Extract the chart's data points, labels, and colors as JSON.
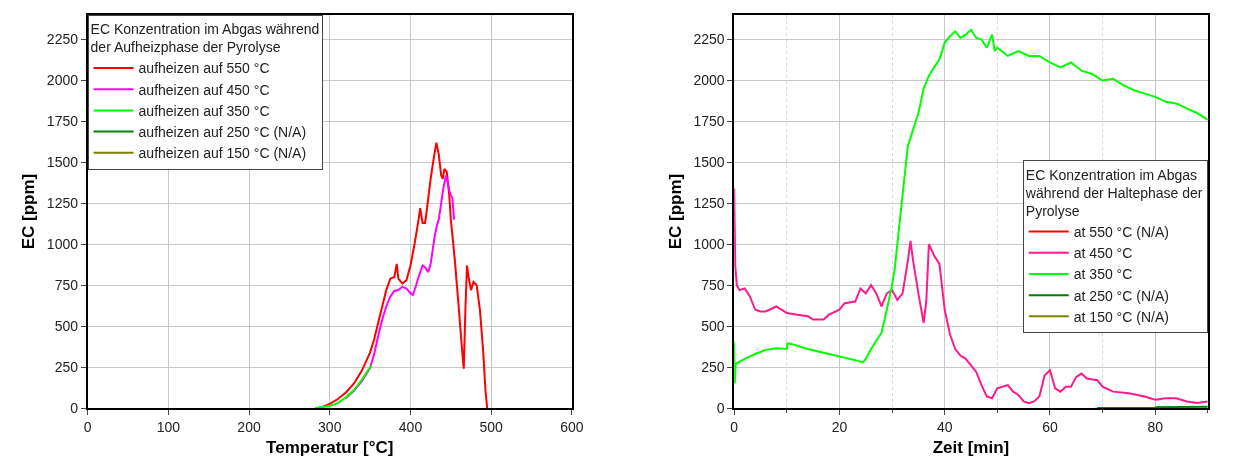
{
  "chart_data": [
    {
      "type": "line",
      "xlabel": "Temperatur [°C]",
      "ylabel": "EC [ppm]",
      "xlim": [
        0,
        600
      ],
      "ylim": [
        0,
        2400
      ],
      "xticks": [
        0,
        100,
        200,
        300,
        400,
        500,
        600
      ],
      "yticks": [
        0,
        250,
        500,
        750,
        1000,
        1250,
        1500,
        1750,
        2000,
        2250
      ],
      "grid": true,
      "legend": "top left",
      "legend_title": "EC Konzentration im Abgas während\nder Aufheizphase der Pyrolyse",
      "series": [
        {
          "name": "aufheizen auf 550 °C",
          "color": "#ff0000",
          "x": [
            285,
            290,
            300,
            310,
            320,
            330,
            340,
            350,
            355,
            360,
            365,
            370,
            375,
            380,
            383,
            385,
            390,
            395,
            400,
            405,
            410,
            412,
            415,
            418,
            420,
            425,
            428,
            432,
            435,
            438,
            440,
            442,
            445,
            448,
            450,
            455,
            460,
            464,
            466,
            468,
            470,
            472,
            475,
            478,
            482,
            486,
            490,
            493,
            495
          ],
          "values": [
            0,
            5,
            25,
            55,
            95,
            150,
            230,
            340,
            420,
            520,
            620,
            720,
            790,
            800,
            880,
            790,
            760,
            780,
            870,
            1000,
            1150,
            1220,
            1130,
            1130,
            1200,
            1400,
            1500,
            1620,
            1550,
            1420,
            1400,
            1460,
            1440,
            1300,
            1150,
            900,
            600,
            350,
            240,
            600,
            870,
            800,
            720,
            770,
            750,
            600,
            350,
            100,
            0
          ]
        },
        {
          "name": "aufheizen auf 450 °C",
          "color": "#ff00ff",
          "x": [
            320,
            330,
            340,
            350,
            355,
            360,
            365,
            370,
            375,
            380,
            385,
            390,
            395,
            400,
            403,
            407,
            410,
            415,
            418,
            422,
            425,
            430,
            433,
            435,
            438,
            441,
            444,
            446,
            448,
            450,
            452,
            454
          ],
          "values": [
            60,
            105,
            165,
            245,
            330,
            440,
            540,
            620,
            680,
            715,
            720,
            740,
            730,
            700,
            690,
            750,
            800,
            870,
            860,
            830,
            880,
            1050,
            1120,
            1150,
            1250,
            1350,
            1420,
            1380,
            1330,
            1300,
            1280,
            1150
          ]
        },
        {
          "name": "aufheizen auf 350 °C",
          "color": "#00ff00",
          "x": [
            282,
            300,
            310,
            320,
            330,
            340,
            350,
            352
          ],
          "values": [
            0,
            12,
            30,
            65,
            110,
            175,
            250,
            260
          ]
        },
        {
          "name": "aufheizen auf 250 °C (N/A)",
          "color": "#008000"
        },
        {
          "name": "aufheizen auf 150 °C (N/A)",
          "color": "#808000"
        }
      ]
    },
    {
      "type": "line",
      "xlabel": "Zeit [min]",
      "ylabel": "EC [ppm]",
      "xlim": [
        0,
        90
      ],
      "ylim": [
        0,
        2400
      ],
      "xticks": [
        0,
        20,
        40,
        60,
        80
      ],
      "yticks": [
        0,
        250,
        500,
        750,
        1000,
        1250,
        1500,
        1750,
        2000,
        2250
      ],
      "grid": true,
      "legend": "right",
      "legend_title": "EC Konzentration im Abgas\nwährend der Haltephase der\nPyrolyse",
      "series": [
        {
          "name": "at 550 °C (N/A)",
          "color": "#ff0000",
          "x": [
            69,
            80
          ],
          "values": [
            0,
            0
          ]
        },
        {
          "name": "at 450 °C",
          "color": "#ff1a8c",
          "x": [
            0,
            0.2,
            0.5,
            1,
            2,
            3,
            4,
            5,
            6,
            8,
            10,
            12,
            14,
            15,
            17,
            18,
            20,
            21,
            23,
            24,
            25,
            26,
            27,
            28,
            29,
            30,
            31,
            32,
            33,
            33.5,
            34,
            35,
            36,
            36.5,
            37,
            38,
            39,
            40,
            41,
            42,
            43,
            44,
            45,
            46,
            47,
            48,
            49,
            50,
            52,
            53,
            54,
            55,
            56,
            57,
            58,
            59,
            60,
            61,
            62,
            63,
            64,
            65,
            66,
            67,
            69,
            70,
            72,
            75,
            78,
            80,
            82,
            84,
            86,
            88,
            90
          ],
          "values": [
            1340,
            870,
            750,
            720,
            730,
            680,
            600,
            590,
            590,
            620,
            580,
            570,
            560,
            540,
            540,
            570,
            600,
            640,
            650,
            730,
            700,
            750,
            700,
            620,
            700,
            720,
            660,
            700,
            900,
            1020,
            900,
            700,
            520,
            650,
            1000,
            930,
            880,
            600,
            450,
            360,
            320,
            300,
            260,
            220,
            140,
            70,
            60,
            120,
            140,
            100,
            80,
            40,
            30,
            40,
            70,
            200,
            230,
            120,
            100,
            130,
            130,
            190,
            210,
            180,
            170,
            130,
            100,
            90,
            70,
            50,
            60,
            60,
            40,
            30,
            40
          ]
        },
        {
          "name": "at 350 °C",
          "color": "#00ff00",
          "x": [
            0,
            0.1,
            0.3,
            2,
            4,
            6,
            8,
            10,
            10.1,
            11,
            14,
            18,
            22,
            24.5,
            25,
            26,
            28,
            29,
            30,
            30.5,
            31,
            32,
            33,
            34,
            35,
            36,
            37,
            38,
            39,
            40,
            41,
            42,
            43,
            44,
            45,
            46,
            47,
            48,
            49,
            49.5,
            50,
            52,
            54,
            56,
            58,
            60,
            62,
            64,
            66,
            68,
            70,
            72,
            74,
            76,
            78,
            80,
            82,
            84,
            86,
            88,
            90
          ],
          "values": [
            400,
            150,
            270,
            300,
            330,
            355,
            365,
            360,
            395,
            390,
            360,
            330,
            300,
            280,
            300,
            360,
            460,
            600,
            750,
            850,
            1000,
            1300,
            1600,
            1700,
            1800,
            1950,
            2030,
            2080,
            2130,
            2230,
            2270,
            2300,
            2260,
            2280,
            2310,
            2260,
            2250,
            2200,
            2280,
            2180,
            2200,
            2150,
            2180,
            2150,
            2150,
            2110,
            2080,
            2110,
            2060,
            2040,
            2000,
            2010,
            1970,
            1940,
            1920,
            1900,
            1870,
            1860,
            1830,
            1800,
            1760
          ]
        },
        {
          "name": "at 250 °C (N/A)",
          "color": "#008000",
          "x": [
            80,
            90
          ],
          "values": [
            5,
            8
          ]
        },
        {
          "name": "at 150 °C (N/A)",
          "color": "#808000"
        }
      ]
    }
  ]
}
